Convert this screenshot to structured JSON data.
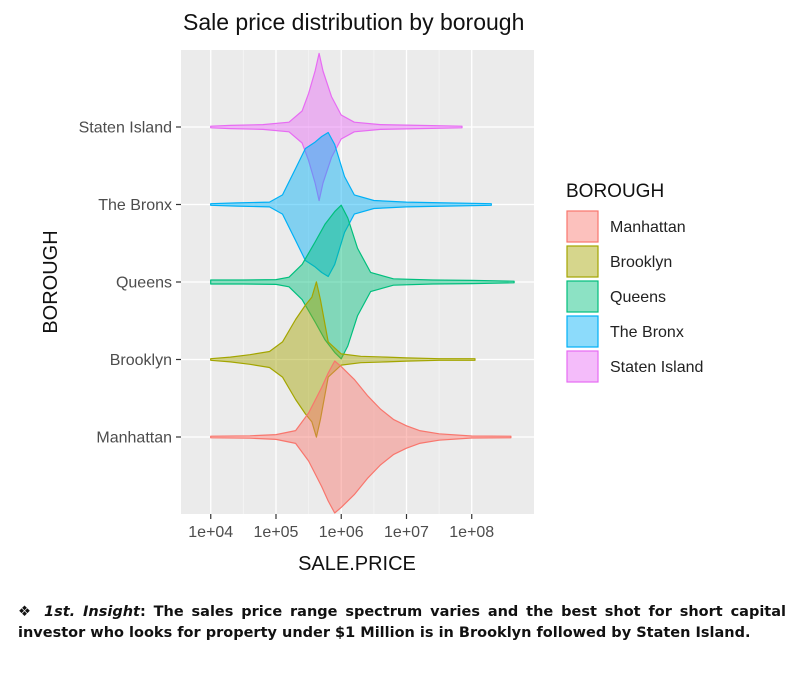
{
  "chart_data": {
    "type": "violin",
    "title": "Sale price distribution by borough",
    "xlabel": "SALE.PRICE",
    "ylabel": "BOROUGH",
    "x_scale": "log10",
    "x_ticks": [
      "1e+04",
      "1e+05",
      "1e+06",
      "1e+07",
      "1e+08"
    ],
    "x_tick_values": [
      10000,
      100000,
      1000000,
      10000000,
      100000000
    ],
    "xlim": [
      3500,
      900000000
    ],
    "legend_title": "BOROUGH",
    "legend_position": "right",
    "grid": true,
    "categories": [
      "Manhattan",
      "Brooklyn",
      "Queens",
      "The Bronx",
      "Staten Island"
    ],
    "series": [
      {
        "name": "Manhattan",
        "color": "#F8766D",
        "min": 10000,
        "max": 400000000,
        "density_profile": [
          [
            4.0,
            0.0
          ],
          [
            4.6,
            0.015
          ],
          [
            5.0,
            0.03
          ],
          [
            5.3,
            0.08
          ],
          [
            5.5,
            0.3
          ],
          [
            5.7,
            0.62
          ],
          [
            5.8,
            0.8
          ],
          [
            5.9,
            0.95
          ],
          [
            6.0,
            0.88
          ],
          [
            6.2,
            0.72
          ],
          [
            6.4,
            0.52
          ],
          [
            6.6,
            0.35
          ],
          [
            6.8,
            0.22
          ],
          [
            7.0,
            0.14
          ],
          [
            7.2,
            0.08
          ],
          [
            7.5,
            0.04
          ],
          [
            8.0,
            0.012
          ],
          [
            8.6,
            0.0
          ]
        ]
      },
      {
        "name": "Brooklyn",
        "color": "#A3A500",
        "min": 10000,
        "max": 120000000,
        "density_profile": [
          [
            4.0,
            0.0
          ],
          [
            4.3,
            0.03
          ],
          [
            4.6,
            0.06
          ],
          [
            4.9,
            0.1
          ],
          [
            5.1,
            0.22
          ],
          [
            5.3,
            0.5
          ],
          [
            5.45,
            0.68
          ],
          [
            5.55,
            0.78
          ],
          [
            5.62,
            0.97
          ],
          [
            5.68,
            0.75
          ],
          [
            5.8,
            0.22
          ],
          [
            6.0,
            0.07
          ],
          [
            6.3,
            0.04
          ],
          [
            6.7,
            0.03
          ],
          [
            7.0,
            0.02
          ],
          [
            7.5,
            0.01
          ],
          [
            8.05,
            0.0
          ]
        ]
      },
      {
        "name": "Queens",
        "color": "#00BF7D",
        "min": 10000,
        "max": 450000000,
        "density_profile": [
          [
            4.0,
            0.025
          ],
          [
            4.5,
            0.025
          ],
          [
            5.0,
            0.03
          ],
          [
            5.2,
            0.06
          ],
          [
            5.4,
            0.22
          ],
          [
            5.6,
            0.5
          ],
          [
            5.75,
            0.72
          ],
          [
            5.9,
            0.88
          ],
          [
            6.0,
            0.96
          ],
          [
            6.1,
            0.8
          ],
          [
            6.25,
            0.42
          ],
          [
            6.45,
            0.12
          ],
          [
            6.8,
            0.04
          ],
          [
            7.4,
            0.025
          ],
          [
            8.0,
            0.02
          ],
          [
            8.65,
            0.0
          ]
        ]
      },
      {
        "name": "The Bronx",
        "color": "#00B0F6",
        "min": 10000,
        "max": 200000000,
        "density_profile": [
          [
            4.0,
            0.0
          ],
          [
            4.4,
            0.02
          ],
          [
            4.9,
            0.03
          ],
          [
            5.1,
            0.12
          ],
          [
            5.3,
            0.45
          ],
          [
            5.45,
            0.7
          ],
          [
            5.6,
            0.78
          ],
          [
            5.7,
            0.85
          ],
          [
            5.8,
            0.9
          ],
          [
            5.9,
            0.75
          ],
          [
            6.05,
            0.35
          ],
          [
            6.2,
            0.12
          ],
          [
            6.5,
            0.05
          ],
          [
            7.0,
            0.03
          ],
          [
            7.6,
            0.02
          ],
          [
            8.3,
            0.0
          ]
        ]
      },
      {
        "name": "Staten Island",
        "color": "#E76BF3",
        "min": 10000,
        "max": 70000000,
        "density_profile": [
          [
            4.0,
            0.0
          ],
          [
            4.3,
            0.02
          ],
          [
            4.8,
            0.03
          ],
          [
            5.2,
            0.06
          ],
          [
            5.4,
            0.2
          ],
          [
            5.5,
            0.42
          ],
          [
            5.6,
            0.7
          ],
          [
            5.66,
            0.92
          ],
          [
            5.72,
            0.7
          ],
          [
            5.85,
            0.38
          ],
          [
            6.0,
            0.15
          ],
          [
            6.2,
            0.06
          ],
          [
            6.6,
            0.03
          ],
          [
            7.2,
            0.02
          ],
          [
            7.85,
            0.0
          ]
        ]
      }
    ]
  },
  "insight": {
    "bullet": "❖",
    "label": "1st. Insight",
    "text": ": The sales price range spectrum varies and the best shot for short capital investor who looks for property under $1 Million is in Brooklyn followed by Staten Island."
  }
}
